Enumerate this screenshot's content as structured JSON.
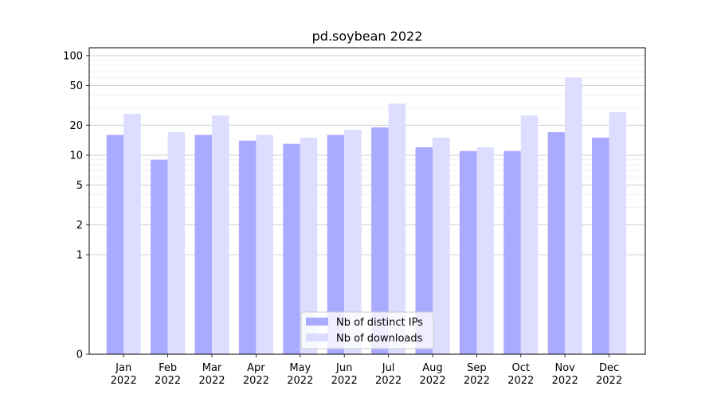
{
  "chart_data": {
    "type": "bar",
    "title": "pd.soybean 2022",
    "xlabel": "",
    "ylabel": "",
    "categories": [
      [
        "Jan",
        "2022"
      ],
      [
        "Feb",
        "2022"
      ],
      [
        "Mar",
        "2022"
      ],
      [
        "Apr",
        "2022"
      ],
      [
        "May",
        "2022"
      ],
      [
        "Jun",
        "2022"
      ],
      [
        "Jul",
        "2022"
      ],
      [
        "Aug",
        "2022"
      ],
      [
        "Sep",
        "2022"
      ],
      [
        "Oct",
        "2022"
      ],
      [
        "Nov",
        "2022"
      ],
      [
        "Dec",
        "2022"
      ]
    ],
    "series": [
      {
        "name": "Nb of distinct IPs",
        "color": "#aaaaff",
        "values": [
          16,
          9,
          16,
          14,
          13,
          16,
          19,
          12,
          11,
          11,
          17,
          15
        ]
      },
      {
        "name": "Nb of downloads",
        "color": "#ddddff",
        "values": [
          26,
          17,
          25,
          16,
          15,
          18,
          33,
          15,
          12,
          25,
          60,
          27
        ]
      }
    ],
    "yscale": "symlog",
    "ylim": [
      0,
      120
    ],
    "yticks": [
      0,
      1,
      2,
      5,
      10,
      20,
      50,
      100
    ],
    "ytick_labels": [
      "0",
      "1",
      "2",
      "5",
      "10",
      "20",
      "50",
      "100"
    ],
    "grid": true,
    "legend_position": "lower center"
  }
}
